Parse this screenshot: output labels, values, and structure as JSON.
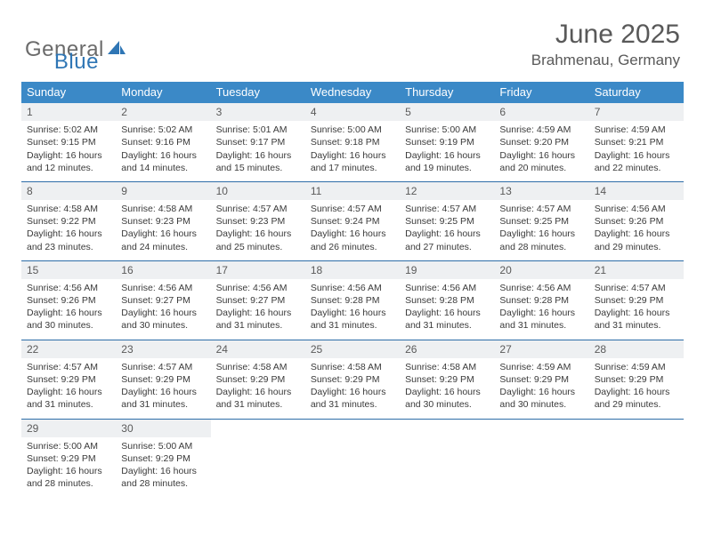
{
  "logo": {
    "word1": "General",
    "word2": "Blue"
  },
  "title": {
    "month": "June 2025",
    "location": "Brahmenau, Germany"
  },
  "colors": {
    "header_bg": "#3b89c7",
    "header_text": "#ffffff",
    "daynum_bg": "#eef0f2",
    "row_divider": "#2d6da8",
    "logo_gray": "#6b6b6b",
    "logo_blue": "#2f76b5",
    "title_color": "#595959",
    "body_text": "#3a3a3a"
  },
  "weekdays": [
    "Sunday",
    "Monday",
    "Tuesday",
    "Wednesday",
    "Thursday",
    "Friday",
    "Saturday"
  ],
  "days": {
    "1": {
      "sunrise": "5:02 AM",
      "sunset": "9:15 PM",
      "daylight": "16 hours and 12 minutes."
    },
    "2": {
      "sunrise": "5:02 AM",
      "sunset": "9:16 PM",
      "daylight": "16 hours and 14 minutes."
    },
    "3": {
      "sunrise": "5:01 AM",
      "sunset": "9:17 PM",
      "daylight": "16 hours and 15 minutes."
    },
    "4": {
      "sunrise": "5:00 AM",
      "sunset": "9:18 PM",
      "daylight": "16 hours and 17 minutes."
    },
    "5": {
      "sunrise": "5:00 AM",
      "sunset": "9:19 PM",
      "daylight": "16 hours and 19 minutes."
    },
    "6": {
      "sunrise": "4:59 AM",
      "sunset": "9:20 PM",
      "daylight": "16 hours and 20 minutes."
    },
    "7": {
      "sunrise": "4:59 AM",
      "sunset": "9:21 PM",
      "daylight": "16 hours and 22 minutes."
    },
    "8": {
      "sunrise": "4:58 AM",
      "sunset": "9:22 PM",
      "daylight": "16 hours and 23 minutes."
    },
    "9": {
      "sunrise": "4:58 AM",
      "sunset": "9:23 PM",
      "daylight": "16 hours and 24 minutes."
    },
    "10": {
      "sunrise": "4:57 AM",
      "sunset": "9:23 PM",
      "daylight": "16 hours and 25 minutes."
    },
    "11": {
      "sunrise": "4:57 AM",
      "sunset": "9:24 PM",
      "daylight": "16 hours and 26 minutes."
    },
    "12": {
      "sunrise": "4:57 AM",
      "sunset": "9:25 PM",
      "daylight": "16 hours and 27 minutes."
    },
    "13": {
      "sunrise": "4:57 AM",
      "sunset": "9:25 PM",
      "daylight": "16 hours and 28 minutes."
    },
    "14": {
      "sunrise": "4:56 AM",
      "sunset": "9:26 PM",
      "daylight": "16 hours and 29 minutes."
    },
    "15": {
      "sunrise": "4:56 AM",
      "sunset": "9:26 PM",
      "daylight": "16 hours and 30 minutes."
    },
    "16": {
      "sunrise": "4:56 AM",
      "sunset": "9:27 PM",
      "daylight": "16 hours and 30 minutes."
    },
    "17": {
      "sunrise": "4:56 AM",
      "sunset": "9:27 PM",
      "daylight": "16 hours and 31 minutes."
    },
    "18": {
      "sunrise": "4:56 AM",
      "sunset": "9:28 PM",
      "daylight": "16 hours and 31 minutes."
    },
    "19": {
      "sunrise": "4:56 AM",
      "sunset": "9:28 PM",
      "daylight": "16 hours and 31 minutes."
    },
    "20": {
      "sunrise": "4:56 AM",
      "sunset": "9:28 PM",
      "daylight": "16 hours and 31 minutes."
    },
    "21": {
      "sunrise": "4:57 AM",
      "sunset": "9:29 PM",
      "daylight": "16 hours and 31 minutes."
    },
    "22": {
      "sunrise": "4:57 AM",
      "sunset": "9:29 PM",
      "daylight": "16 hours and 31 minutes."
    },
    "23": {
      "sunrise": "4:57 AM",
      "sunset": "9:29 PM",
      "daylight": "16 hours and 31 minutes."
    },
    "24": {
      "sunrise": "4:58 AM",
      "sunset": "9:29 PM",
      "daylight": "16 hours and 31 minutes."
    },
    "25": {
      "sunrise": "4:58 AM",
      "sunset": "9:29 PM",
      "daylight": "16 hours and 31 minutes."
    },
    "26": {
      "sunrise": "4:58 AM",
      "sunset": "9:29 PM",
      "daylight": "16 hours and 30 minutes."
    },
    "27": {
      "sunrise": "4:59 AM",
      "sunset": "9:29 PM",
      "daylight": "16 hours and 30 minutes."
    },
    "28": {
      "sunrise": "4:59 AM",
      "sunset": "9:29 PM",
      "daylight": "16 hours and 29 minutes."
    },
    "29": {
      "sunrise": "5:00 AM",
      "sunset": "9:29 PM",
      "daylight": "16 hours and 28 minutes."
    },
    "30": {
      "sunrise": "5:00 AM",
      "sunset": "9:29 PM",
      "daylight": "16 hours and 28 minutes."
    }
  },
  "labels": {
    "sunrise": "Sunrise: ",
    "sunset": "Sunset: ",
    "daylight": "Daylight: "
  },
  "grid": [
    [
      1,
      2,
      3,
      4,
      5,
      6,
      7
    ],
    [
      8,
      9,
      10,
      11,
      12,
      13,
      14
    ],
    [
      15,
      16,
      17,
      18,
      19,
      20,
      21
    ],
    [
      22,
      23,
      24,
      25,
      26,
      27,
      28
    ],
    [
      29,
      30,
      null,
      null,
      null,
      null,
      null
    ]
  ]
}
